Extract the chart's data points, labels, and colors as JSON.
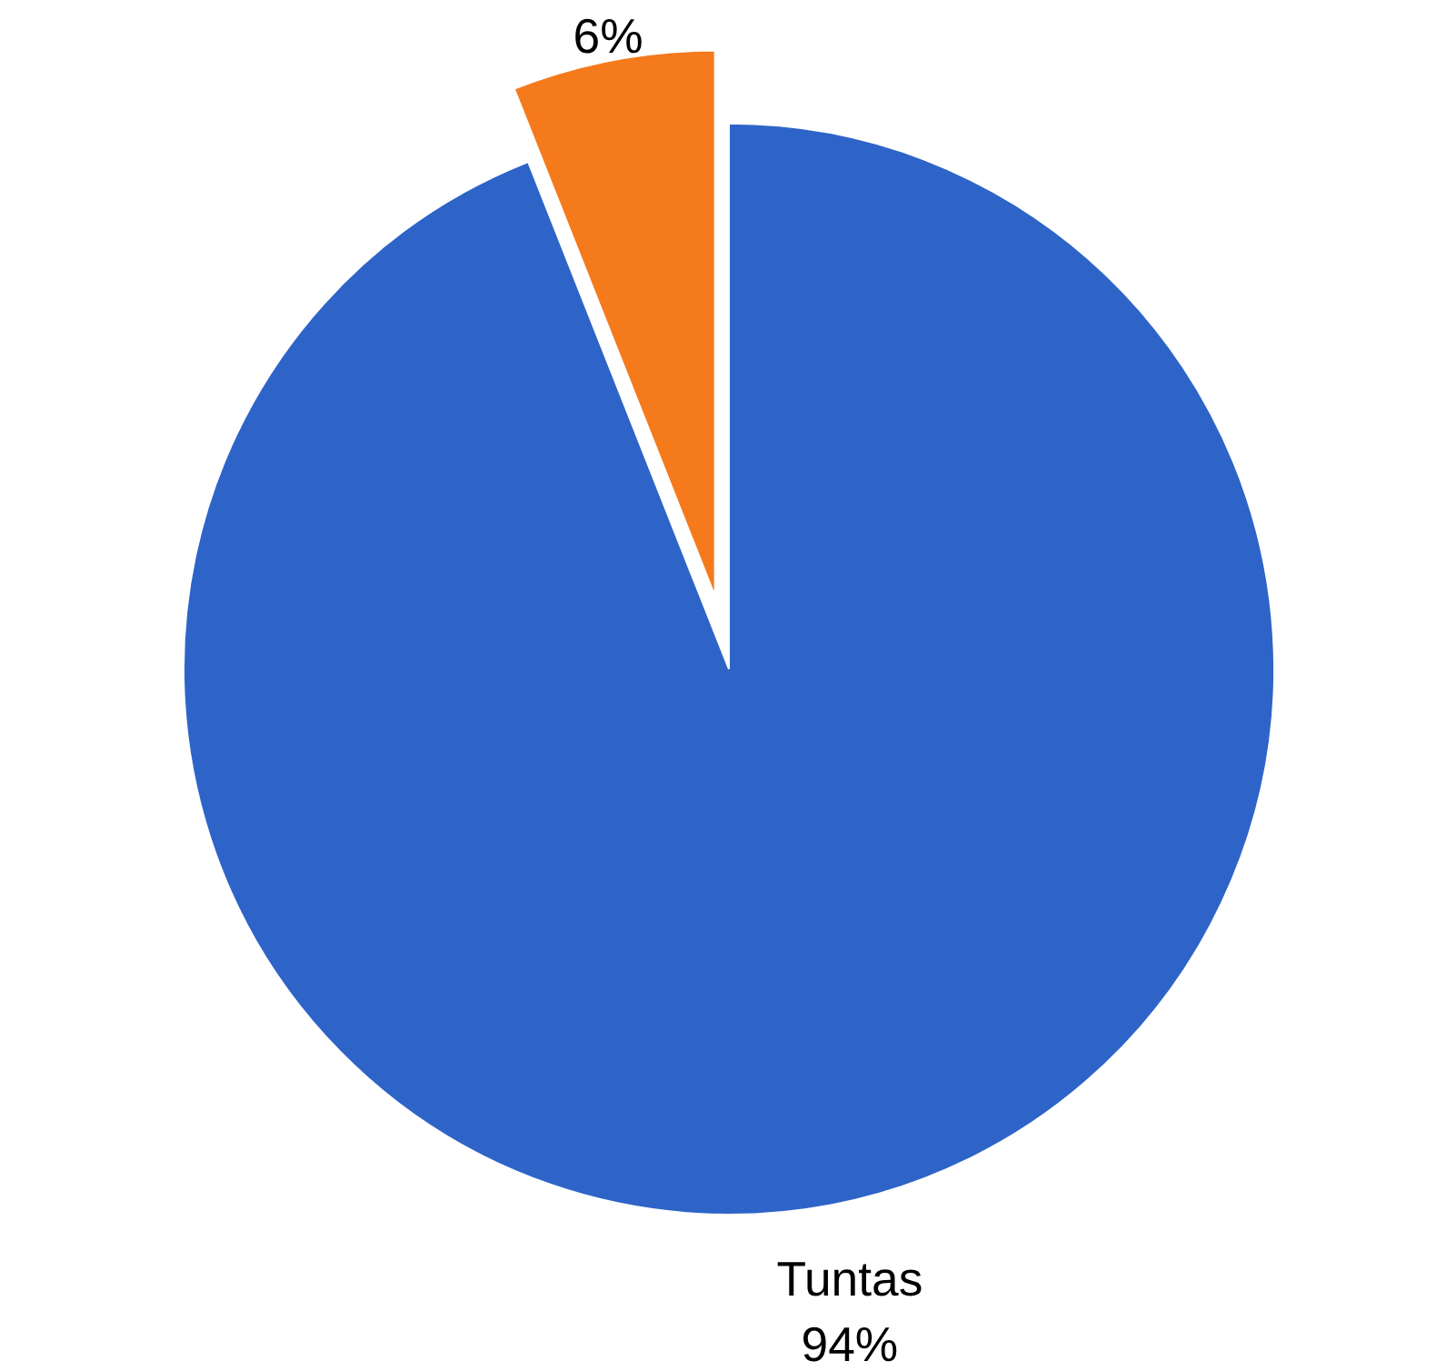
{
  "chart_data": {
    "type": "pie",
    "categories": [
      null,
      "Tuntas"
    ],
    "values": [
      6,
      94
    ],
    "colors": [
      "#f57a1c",
      "#2e64c8"
    ],
    "value_labels": [
      "6%",
      "94%"
    ]
  }
}
